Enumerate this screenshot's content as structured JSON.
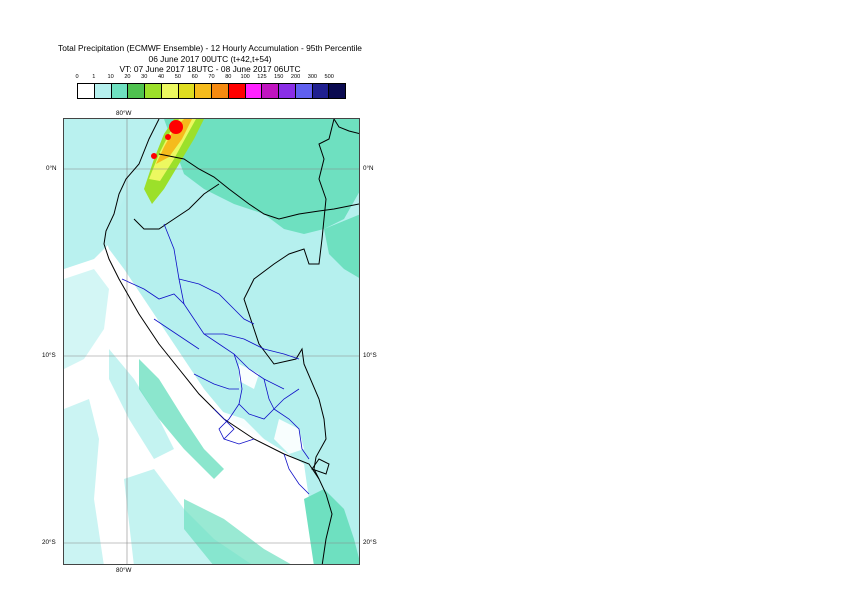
{
  "title": {
    "line1": "Total Precipitation (ECMWF Ensemble) - 12 Hourly Accumulation - 95th Percentile",
    "line2": "06 June 2017 00UTC (t+42,t+54)",
    "line3": "VT: 07 June 2017 18UTC - 08 June 2017 06UTC"
  },
  "legend": {
    "labels": [
      "0",
      "1",
      "10",
      "20",
      "30",
      "40",
      "50",
      "60",
      "70",
      "80",
      "100",
      "125",
      "150",
      "200",
      "300",
      "500"
    ],
    "colors": [
      "#ffffff",
      "#b5f0ee",
      "#6ee0c0",
      "#4fc24f",
      "#9ce02a",
      "#ecf860",
      "#dfdd20",
      "#f5bb1c",
      "#f58a10",
      "#ff0000",
      "#ff22ff",
      "#c014c0",
      "#8a2ee6",
      "#6060f0",
      "#202090",
      "#0a0a50"
    ]
  },
  "map": {
    "longitude_labels": [
      "80°W"
    ],
    "latitude_labels": [
      "0°N",
      "10°S",
      "20°S"
    ],
    "colors": {
      "land_fill": "#b5f0ee",
      "moderate_fill": "#6ee0c0",
      "heavy_fill_1": "#9ce02a",
      "heavy_fill_2": "#ecf860",
      "heavy_fill_3": "#f5bb1c",
      "heavy_fill_4": "#ff0000",
      "country_border": "#000000",
      "region_border": "#1010c8",
      "grid_line": "#888888"
    }
  }
}
